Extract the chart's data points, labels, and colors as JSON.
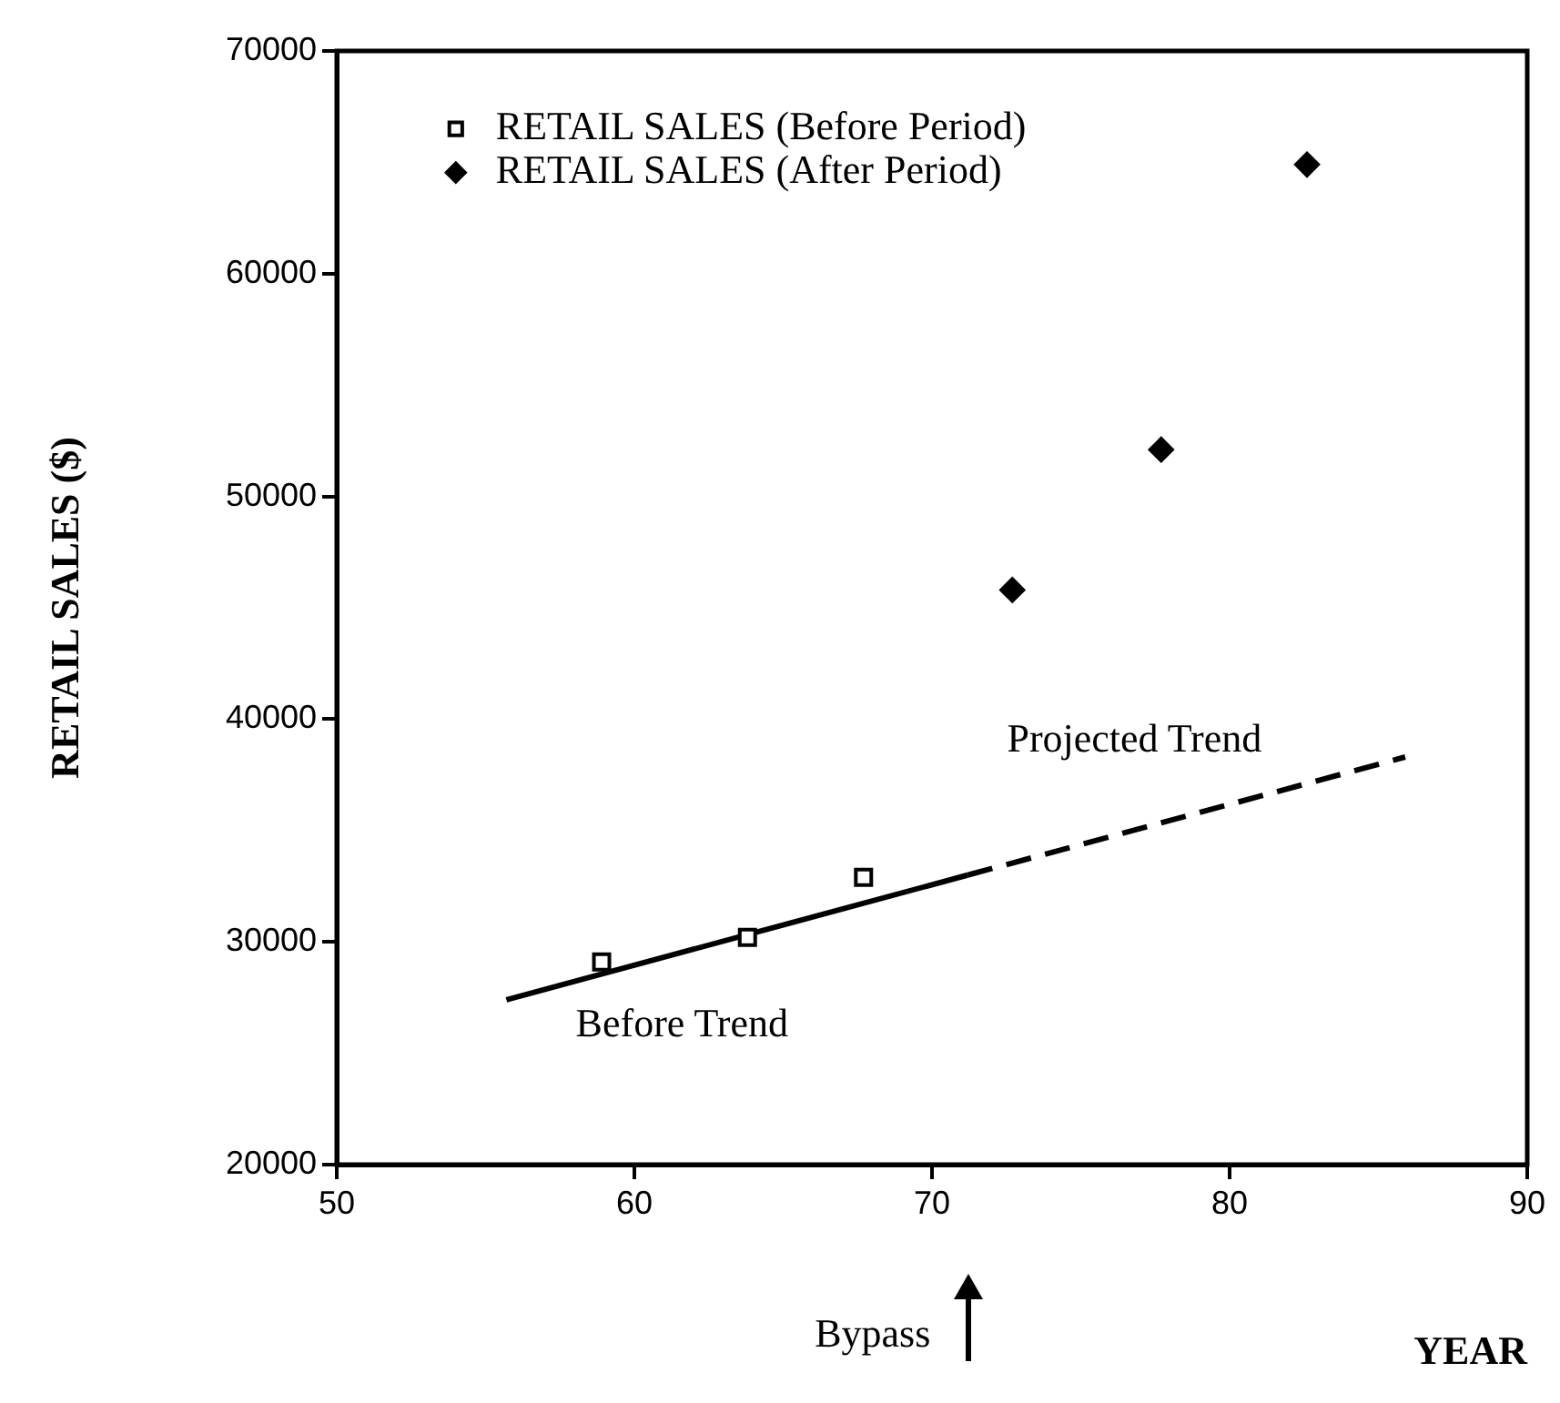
{
  "chart_data": {
    "type": "scatter",
    "xlabel": "YEAR",
    "ylabel": "RETAIL SALES ($)",
    "xlim": [
      50,
      90
    ],
    "xticks": [
      50,
      60,
      70,
      80,
      90
    ],
    "ylim": [
      20000,
      70000
    ],
    "yticks": [
      20000,
      30000,
      40000,
      50000,
      60000,
      70000
    ],
    "grid": false,
    "legend": "top left",
    "series": [
      {
        "name": "RETAIL SALES (Before Period)",
        "color": "#000000",
        "marker": "square",
        "x": [
          58.9,
          63.8,
          67.7
        ],
        "values": [
          29100,
          30200,
          32900
        ]
      },
      {
        "name": "RETAIL SALES (After Period)",
        "color": "#000000",
        "marker": "diamond",
        "x": [
          72.7,
          77.7,
          82.6
        ],
        "values": [
          45800,
          52100,
          64900
        ]
      },
      {
        "color": "#000000",
        "type": "line",
        "marker": "none",
        "line_style": "solid",
        "x": [
          55.7,
          71.2
        ],
        "values": [
          27400,
          33000
        ]
      },
      {
        "color": "#000000",
        "type": "line",
        "marker": "none",
        "line_style": "dashed",
        "x": [
          71.2,
          85.9
        ],
        "values": [
          33000,
          38300
        ]
      }
    ],
    "annotations": [
      "Before Trend",
      "Projected Trend",
      "Bypass"
    ]
  }
}
